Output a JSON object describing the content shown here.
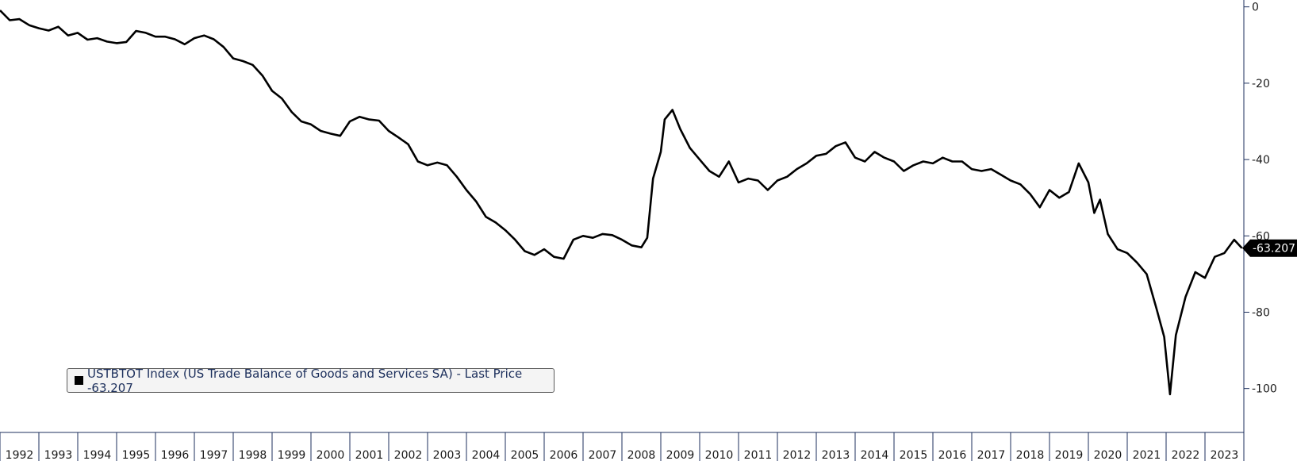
{
  "chart_data": {
    "type": "line",
    "title": "",
    "xlabel": "",
    "ylabel": "",
    "x_tick_labels": [
      "1992",
      "1993",
      "1994",
      "1995",
      "1996",
      "1997",
      "1998",
      "1999",
      "2000",
      "2001",
      "2002",
      "2003",
      "2004",
      "2005",
      "2006",
      "2007",
      "2008",
      "2009",
      "2010",
      "2011",
      "2012",
      "2013",
      "2014",
      "2015",
      "2016",
      "2017",
      "2018",
      "2019",
      "2020",
      "2021",
      "2022",
      "2023"
    ],
    "y_ticks": [
      0,
      -20,
      -40,
      -60,
      -80,
      -100
    ],
    "y_tick_labels": [
      "0",
      "-20",
      "-40",
      "-60",
      "-80",
      "-100"
    ],
    "xlim": [
      1992.0,
      2024.0
    ],
    "ylim": [
      -111.5,
      1.8
    ],
    "grid": false,
    "line_color": "#000000",
    "last_price_label": "-63.207",
    "legend_position": "bottom-left",
    "legend_label": "USTBTOT Index (US Trade Balance of Goods and Services SA) - Last Price -63.207",
    "series": [
      {
        "name": "USTBTOT Index (US Trade Balance of Goods and Services SA)",
        "points": [
          [
            1992.0,
            -0.9
          ],
          [
            1992.25,
            -3.5
          ],
          [
            1992.5,
            -3.2
          ],
          [
            1992.75,
            -4.8
          ],
          [
            1993.0,
            -5.6
          ],
          [
            1993.25,
            -6.2
          ],
          [
            1993.5,
            -5.2
          ],
          [
            1993.75,
            -7.5
          ],
          [
            1994.0,
            -6.8
          ],
          [
            1994.25,
            -8.6
          ],
          [
            1994.5,
            -8.2
          ],
          [
            1994.75,
            -9.1
          ],
          [
            1995.0,
            -9.5
          ],
          [
            1995.25,
            -9.2
          ],
          [
            1995.5,
            -6.3
          ],
          [
            1995.75,
            -6.8
          ],
          [
            1996.0,
            -7.8
          ],
          [
            1996.25,
            -7.8
          ],
          [
            1996.5,
            -8.5
          ],
          [
            1996.75,
            -9.8
          ],
          [
            1997.0,
            -8.2
          ],
          [
            1997.25,
            -7.5
          ],
          [
            1997.5,
            -8.5
          ],
          [
            1997.75,
            -10.5
          ],
          [
            1998.0,
            -13.5
          ],
          [
            1998.25,
            -14.2
          ],
          [
            1998.5,
            -15.2
          ],
          [
            1998.75,
            -18.0
          ],
          [
            1999.0,
            -22.0
          ],
          [
            1999.25,
            -24.0
          ],
          [
            1999.5,
            -27.5
          ],
          [
            1999.75,
            -30.0
          ],
          [
            2000.0,
            -30.8
          ],
          [
            2000.25,
            -32.5
          ],
          [
            2000.5,
            -33.2
          ],
          [
            2000.75,
            -33.8
          ],
          [
            2001.0,
            -30.0
          ],
          [
            2001.25,
            -28.8
          ],
          [
            2001.5,
            -29.5
          ],
          [
            2001.75,
            -29.8
          ],
          [
            2002.0,
            -32.5
          ],
          [
            2002.25,
            -34.2
          ],
          [
            2002.5,
            -36.0
          ],
          [
            2002.75,
            -40.5
          ],
          [
            2003.0,
            -41.5
          ],
          [
            2003.25,
            -40.8
          ],
          [
            2003.5,
            -41.5
          ],
          [
            2003.75,
            -44.5
          ],
          [
            2004.0,
            -48.0
          ],
          [
            2004.25,
            -51.0
          ],
          [
            2004.5,
            -55.0
          ],
          [
            2004.75,
            -56.5
          ],
          [
            2005.0,
            -58.5
          ],
          [
            2005.25,
            -61.0
          ],
          [
            2005.5,
            -64.0
          ],
          [
            2005.75,
            -65.0
          ],
          [
            2006.0,
            -63.5
          ],
          [
            2006.25,
            -65.5
          ],
          [
            2006.5,
            -66.0
          ],
          [
            2006.75,
            -61.0
          ],
          [
            2007.0,
            -60.0
          ],
          [
            2007.25,
            -60.5
          ],
          [
            2007.5,
            -59.5
          ],
          [
            2007.75,
            -59.8
          ],
          [
            2008.0,
            -61.0
          ],
          [
            2008.25,
            -62.5
          ],
          [
            2008.5,
            -63.0
          ],
          [
            2008.65,
            -60.5
          ],
          [
            2008.8,
            -45.0
          ],
          [
            2009.0,
            -38.0
          ],
          [
            2009.1,
            -29.5
          ],
          [
            2009.3,
            -27.0
          ],
          [
            2009.5,
            -32.0
          ],
          [
            2009.75,
            -37.0
          ],
          [
            2010.0,
            -40.0
          ],
          [
            2010.25,
            -43.0
          ],
          [
            2010.5,
            -44.5
          ],
          [
            2010.75,
            -40.5
          ],
          [
            2011.0,
            -46.0
          ],
          [
            2011.25,
            -45.0
          ],
          [
            2011.5,
            -45.5
          ],
          [
            2011.75,
            -48.0
          ],
          [
            2012.0,
            -45.5
          ],
          [
            2012.25,
            -44.5
          ],
          [
            2012.5,
            -42.5
          ],
          [
            2012.75,
            -41.0
          ],
          [
            2013.0,
            -39.0
          ],
          [
            2013.25,
            -38.5
          ],
          [
            2013.5,
            -36.5
          ],
          [
            2013.75,
            -35.5
          ],
          [
            2014.0,
            -39.5
          ],
          [
            2014.25,
            -40.5
          ],
          [
            2014.5,
            -38.0
          ],
          [
            2014.75,
            -39.5
          ],
          [
            2015.0,
            -40.5
          ],
          [
            2015.25,
            -43.0
          ],
          [
            2015.5,
            -41.5
          ],
          [
            2015.75,
            -40.5
          ],
          [
            2016.0,
            -41.0
          ],
          [
            2016.25,
            -39.5
          ],
          [
            2016.5,
            -40.5
          ],
          [
            2016.75,
            -40.5
          ],
          [
            2017.0,
            -42.5
          ],
          [
            2017.25,
            -43.0
          ],
          [
            2017.5,
            -42.5
          ],
          [
            2017.75,
            -44.0
          ],
          [
            2018.0,
            -45.5
          ],
          [
            2018.25,
            -46.5
          ],
          [
            2018.5,
            -49.0
          ],
          [
            2018.75,
            -52.5
          ],
          [
            2019.0,
            -48.0
          ],
          [
            2019.25,
            -50.0
          ],
          [
            2019.5,
            -48.5
          ],
          [
            2019.75,
            -41.0
          ],
          [
            2020.0,
            -46.0
          ],
          [
            2020.15,
            -54.0
          ],
          [
            2020.3,
            -50.5
          ],
          [
            2020.5,
            -59.5
          ],
          [
            2020.75,
            -63.5
          ],
          [
            2021.0,
            -64.5
          ],
          [
            2021.25,
            -67.0
          ],
          [
            2021.5,
            -70.0
          ],
          [
            2021.75,
            -79.0
          ],
          [
            2021.95,
            -86.5
          ],
          [
            2022.1,
            -101.5
          ],
          [
            2022.25,
            -86.0
          ],
          [
            2022.5,
            -76.0
          ],
          [
            2022.75,
            -69.5
          ],
          [
            2023.0,
            -71.0
          ],
          [
            2023.25,
            -65.5
          ],
          [
            2023.5,
            -64.5
          ],
          [
            2023.75,
            -61.0
          ],
          [
            2023.95,
            -63.207
          ]
        ]
      }
    ]
  }
}
